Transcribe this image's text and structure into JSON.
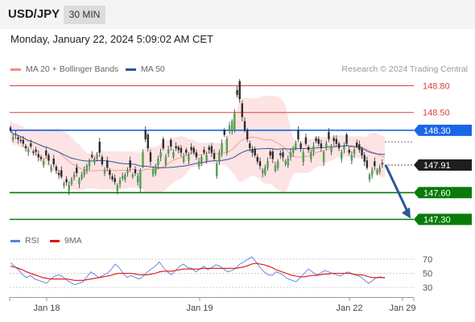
{
  "header": {
    "symbol": "USD/JPY",
    "timeframe": "30 MIN"
  },
  "datetime": "Monday, January 22, 2024 5:09:02 AM CET",
  "credit": "Research © 2024 Trading Central",
  "legend": {
    "bb": {
      "label": "MA 20 + Bollinger Bands",
      "color": "#f08c84"
    },
    "ma50": {
      "label": "MA 50",
      "color": "#2b5797"
    }
  },
  "rsi_legend": {
    "rsi": {
      "label": "RSI",
      "color": "#5b7fde"
    },
    "ma9": {
      "label": "9MA",
      "color": "#e01010"
    }
  },
  "chart_data": [
    {
      "type": "candlestick",
      "ylim": [
        147.25,
        148.87
      ],
      "current_price": {
        "value": 147.91,
        "label": "147.91"
      },
      "levels": [
        {
          "value": 148.8,
          "label": "148.80",
          "kind": "resistance",
          "color": "#e04040"
        },
        {
          "value": 148.5,
          "label": "148.50",
          "kind": "resistance",
          "color": "#e04040"
        },
        {
          "value": 148.3,
          "label": "148.30",
          "kind": "pivot",
          "color": "#1a66e6"
        },
        {
          "value": 147.6,
          "label": "147.60",
          "kind": "support",
          "color": "#0a7a0a"
        },
        {
          "value": 147.3,
          "label": "147.30",
          "kind": "support",
          "color": "#0a7a0a"
        }
      ],
      "forecast_arrow": {
        "from": 147.91,
        "to": 147.3,
        "color": "#2b5797"
      },
      "x_ticks": [
        "Jan 18",
        "Jan 19",
        "Jan 22",
        "Jan 29"
      ],
      "close": [
        148.3,
        148.22,
        148.25,
        148.2,
        148.18,
        148.15,
        148.1,
        148.08,
        148.12,
        148.05,
        148.06,
        148.0,
        147.98,
        147.95,
        148.02,
        147.96,
        147.88,
        147.92,
        147.85,
        147.8,
        147.78,
        147.7,
        147.72,
        147.68,
        147.75,
        147.8,
        147.82,
        147.75,
        147.8,
        147.85,
        147.9,
        147.95,
        148.0,
        147.98,
        148.02,
        148.05,
        147.92,
        147.85,
        147.88,
        147.8,
        147.75,
        147.72,
        147.68,
        147.74,
        147.78,
        147.8,
        147.85,
        147.88,
        147.8,
        147.82,
        147.78,
        147.85,
        148.05,
        148.2,
        148.1,
        147.95,
        147.85,
        147.9,
        147.98,
        148.05,
        148.1,
        148.0,
        148.08,
        148.12,
        148.05,
        148.1,
        148.08,
        148.05,
        148.0,
        148.05,
        148.02,
        148.08,
        148.05,
        148.0,
        147.95,
        148.0,
        148.05,
        148.02,
        148.08,
        148.05,
        147.98,
        147.92,
        148.05,
        148.15,
        148.25,
        148.2,
        148.35,
        148.4,
        148.5,
        148.7,
        148.65,
        148.45,
        148.3,
        148.2,
        148.1,
        148.05,
        148.02,
        147.95,
        147.9,
        147.85,
        147.88,
        147.95,
        148.02,
        147.98,
        147.9,
        147.95,
        148.02,
        148.0,
        147.95,
        147.98,
        148.05,
        148.1,
        148.15,
        148.2,
        148.1,
        148.05,
        148.15,
        148.08,
        148.05,
        148.12,
        148.18,
        148.15,
        148.1,
        148.05,
        148.15,
        148.2,
        148.12,
        148.18,
        148.15,
        148.1,
        148.05,
        148.12,
        148.15,
        148.05,
        148.02,
        148.08,
        148.12,
        148.08,
        148.02,
        147.95,
        147.88,
        147.8,
        147.85,
        147.9,
        147.85,
        147.88,
        147.92,
        147.91
      ],
      "open_offset": [
        0.03,
        -0.02,
        -0.01,
        0.02,
        0.01,
        0.04,
        0.02,
        -0.02,
        0.03,
        0.01,
        0.02,
        0.03,
        0.02,
        -0.04,
        0.05,
        0.06,
        -0.03,
        0.06,
        0.04,
        0.02,
        0.07,
        -0.02,
        0.03,
        -0.06,
        -0.05,
        -0.03,
        0.06,
        -0.05,
        -0.04,
        -0.05,
        -0.05,
        -0.05,
        0.02,
        -0.04,
        -0.03,
        0.12,
        0.08,
        -0.03,
        0.08,
        0.05,
        0.03,
        0.04,
        -0.06,
        -0.04,
        -0.02,
        -0.05,
        -0.03,
        0.08,
        -0.02,
        0.04,
        -0.06,
        -0.2,
        -0.15,
        0.1,
        0.15,
        0.1,
        -0.05,
        -0.08,
        -0.07,
        -0.05,
        0.1,
        -0.08,
        -0.04,
        0.07,
        -0.05,
        0.02,
        0.03,
        0.05,
        -0.05,
        0.03,
        -0.06,
        0.03,
        0.05,
        0.05,
        -0.05,
        -0.05,
        0.03,
        -0.06,
        0.03,
        0.07,
        0.06,
        -0.13,
        -0.1,
        -0.1,
        0.05,
        -0.15,
        -0.05,
        -0.1,
        -0.2,
        0.05,
        0.2,
        0.15,
        0.1,
        0.1,
        0.05,
        0.03,
        0.07,
        0.05,
        0.05,
        -0.03,
        -0.07,
        -0.07,
        0.04,
        0.08,
        -0.05,
        -0.07,
        0.02,
        0.05,
        -0.03,
        -0.07,
        -0.05,
        -0.05,
        -0.05,
        0.1,
        0.05,
        -0.1,
        0.07,
        0.03,
        -0.07,
        -0.06,
        0.03,
        0.05,
        0.05,
        -0.1,
        -0.05,
        0.08,
        -0.06,
        0.03,
        0.05,
        0.05,
        -0.07,
        -0.03,
        0.1,
        0.03,
        -0.06,
        -0.04,
        0.04,
        0.06,
        0.07,
        0.07,
        0.08,
        -0.05,
        -0.05,
        0.05,
        -0.03,
        -0.04,
        0.01
      ]
    },
    {
      "type": "line",
      "title": "RSI",
      "ylim": [
        20,
        80
      ],
      "y_ticks": [
        30,
        50,
        70
      ],
      "series": [
        {
          "name": "RSI",
          "values": [
            65,
            60,
            55,
            48,
            44,
            47,
            42,
            40,
            38,
            36,
            42,
            46,
            48,
            45,
            40,
            37,
            34,
            36,
            38,
            45,
            52,
            48,
            44,
            47,
            50,
            55,
            63,
            58,
            50,
            44,
            47,
            44,
            42,
            46,
            52,
            56,
            60,
            66,
            58,
            52,
            48,
            54,
            60,
            63,
            58,
            57,
            52,
            56,
            60,
            55,
            58,
            62,
            60,
            56,
            52,
            54,
            57,
            63,
            66,
            70,
            73,
            66,
            58,
            52,
            48,
            47,
            52,
            50,
            46,
            42,
            40,
            38,
            44,
            50,
            56,
            52,
            48,
            50,
            54,
            52,
            50,
            48,
            46,
            50,
            52,
            49,
            47,
            45,
            40,
            36,
            40,
            44,
            45,
            43
          ]
        },
        {
          "name": "9MA",
          "values": [
            60,
            59,
            57,
            55,
            52,
            50,
            48,
            46,
            44,
            43,
            42,
            42,
            42,
            42,
            42,
            41,
            40,
            40,
            40,
            41,
            42,
            43,
            44,
            45,
            46,
            47,
            49,
            50,
            50,
            50,
            50,
            49,
            48,
            48,
            48,
            49,
            50,
            52,
            53,
            53,
            53,
            54,
            55,
            56,
            56,
            56,
            56,
            56,
            57,
            57,
            57,
            57,
            57,
            57,
            57,
            57,
            57,
            58,
            59,
            61,
            63,
            64,
            63,
            62,
            60,
            58,
            55,
            53,
            51,
            49,
            47,
            46,
            45,
            45,
            46,
            47,
            47,
            48,
            49,
            49,
            50,
            50,
            50,
            50,
            50,
            49,
            48,
            48,
            47,
            45,
            44,
            44,
            44,
            44
          ]
        }
      ]
    }
  ]
}
